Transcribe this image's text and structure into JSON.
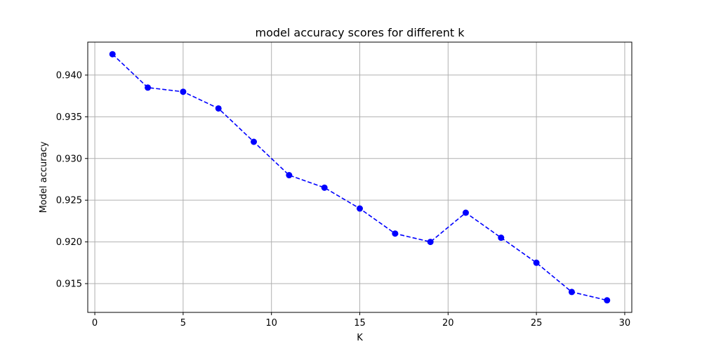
{
  "chart_data": {
    "type": "line",
    "title": "model accuracy scores for different k",
    "xlabel": "K",
    "ylabel": "Model accuracy",
    "xlim": [
      -0.4,
      30.4
    ],
    "ylim": [
      0.91155,
      0.94395
    ],
    "xticks": [
      0,
      5,
      10,
      15,
      20,
      25,
      30
    ],
    "yticks": [
      0.915,
      0.92,
      0.925,
      0.93,
      0.935,
      0.94
    ],
    "ytick_labels": [
      "0.915",
      "0.920",
      "0.925",
      "0.930",
      "0.935",
      "0.940"
    ],
    "grid": true,
    "line_style": "dashed",
    "marker": "circle",
    "color": "#0000ff",
    "x": [
      1,
      3,
      5,
      7,
      9,
      11,
      13,
      15,
      17,
      19,
      21,
      23,
      25,
      27,
      29
    ],
    "y": [
      0.9425,
      0.9385,
      0.938,
      0.936,
      0.932,
      0.928,
      0.9265,
      0.924,
      0.921,
      0.92,
      0.9235,
      0.9205,
      0.9175,
      0.914,
      0.913
    ]
  }
}
